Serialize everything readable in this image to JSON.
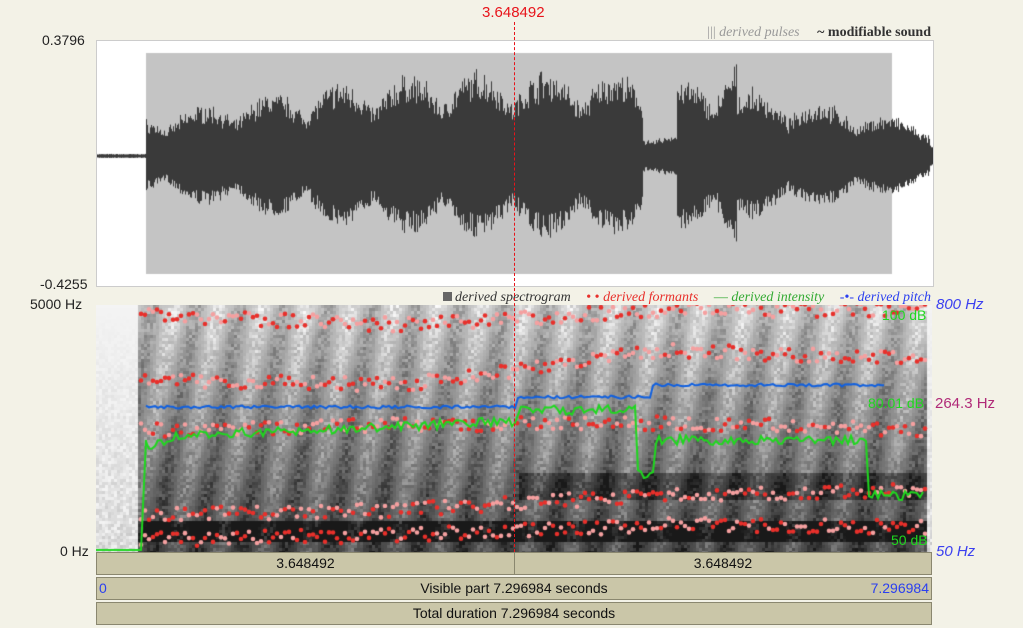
{
  "cursor": {
    "time_label": "3.648492",
    "color": "#e8141b"
  },
  "waveform": {
    "max_label": "0.3796",
    "min_label": "-0.4255",
    "legend": {
      "pulses": "derived pulses",
      "pulses_icon": "|||",
      "sound_icon": "~",
      "sound": "modifiable sound"
    }
  },
  "spectrogram": {
    "top_label": "5000 Hz",
    "bottom_label": "0 Hz",
    "legend": {
      "spectrogram": "derived spectrogram",
      "formants": "derived formants",
      "intensity": "derived intensity",
      "pitch": "derived pitch"
    },
    "pitch_top": "800 Hz",
    "pitch_bottom": "50 Hz",
    "pitch_cursor": "264.3 Hz",
    "intensity_top": "100 dB",
    "intensity_cursor": "80.01 dB",
    "intensity_bottom": "50 dB"
  },
  "colors": {
    "formants": "#e8302b",
    "intensity": "#1fd81f",
    "pitch": "#1060e0",
    "pitch_label": "#3a3ff0",
    "pitch_cursor": "#b02a78"
  },
  "timebar": {
    "left_segment": "3.648492",
    "right_segment": "3.648492",
    "start": "0",
    "end": "7.296984",
    "visible": "Visible part 7.296984 seconds",
    "total": "Total duration 7.296984 seconds"
  }
}
